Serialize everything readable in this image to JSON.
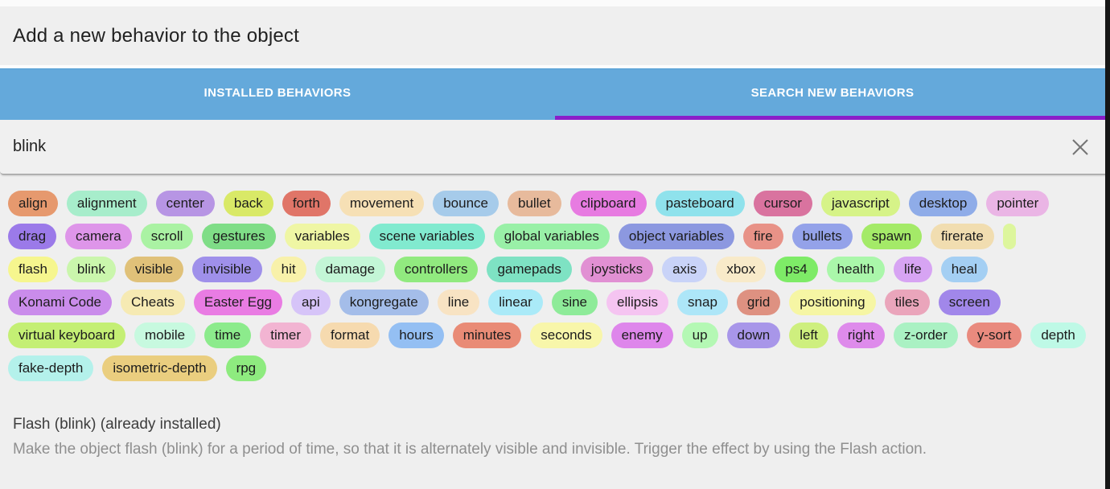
{
  "dialog": {
    "title": "Add a new behavior to the object"
  },
  "tabs": [
    {
      "label": "INSTALLED BEHAVIORS",
      "active": false
    },
    {
      "label": "SEARCH NEW BEHAVIORS",
      "active": true
    }
  ],
  "search": {
    "value": "blink",
    "clear_icon": "close-x"
  },
  "colors": {
    "tab_bar": "#64a9db",
    "active_tab_indicator": "#8a1fc9",
    "tab_text": "#ffffff",
    "search_bg": "#f0f0f0",
    "page_bg": "#efefef",
    "right_edge": "#161616",
    "close_icon": "#757575"
  },
  "tags": {
    "rows": [
      [
        {
          "label": "align",
          "color": "#e6996e"
        },
        {
          "label": "alignment",
          "color": "#a7edcb"
        },
        {
          "label": "center",
          "color": "#b795e4"
        },
        {
          "label": "back",
          "color": "#d9e967"
        },
        {
          "label": "forth",
          "color": "#e07568"
        },
        {
          "label": "movement",
          "color": "#f6e0b5"
        },
        {
          "label": "bounce",
          "color": "#a6cbea"
        },
        {
          "label": "bullet",
          "color": "#e7ba9c"
        },
        {
          "label": "clipboard",
          "color": "#e77be1"
        },
        {
          "label": "pasteboard",
          "color": "#8fe2ec"
        },
        {
          "label": "cursor",
          "color": "#d9739f"
        },
        {
          "label": "javascript",
          "color": "#d6f388"
        },
        {
          "label": "desktop",
          "color": "#8face8"
        },
        {
          "label": "pointer",
          "color": "#eab5e5"
        }
      ],
      [
        {
          "label": "drag",
          "color": "#9b7ae9"
        },
        {
          "label": "camera",
          "color": "#de95e9"
        },
        {
          "label": "scroll",
          "color": "#aaf2a3"
        },
        {
          "label": "gestures",
          "color": "#7fdd87"
        },
        {
          "label": "variables",
          "color": "#eff6a4"
        },
        {
          "label": "scene variables",
          "color": "#81eacf"
        },
        {
          "label": "global variables",
          "color": "#99f0a7"
        },
        {
          "label": "object variables",
          "color": "#8c98e0"
        },
        {
          "label": "fire",
          "color": "#e89287"
        },
        {
          "label": "bullets",
          "color": "#94a2e9"
        },
        {
          "label": "spawn",
          "color": "#a4ea68"
        },
        {
          "label": "firerate",
          "color": "#f1ddb0"
        },
        {
          "label": "",
          "color": "#ddf69d"
        }
      ],
      [
        {
          "label": "flash",
          "color": "#f6f68e"
        },
        {
          "label": "blink",
          "color": "#caf6ac"
        },
        {
          "label": "visible",
          "color": "#e0c179"
        },
        {
          "label": "invisible",
          "color": "#9f90ea"
        },
        {
          "label": "hit",
          "color": "#f8f1aa"
        },
        {
          "label": "damage",
          "color": "#c3f6d6"
        },
        {
          "label": "controllers",
          "color": "#91ea7f"
        },
        {
          "label": "gamepads",
          "color": "#7ee2c3"
        },
        {
          "label": "joysticks",
          "color": "#e190d3"
        },
        {
          "label": "axis",
          "color": "#c9d3f8"
        },
        {
          "label": "xbox",
          "color": "#f8eac9"
        },
        {
          "label": "ps4",
          "color": "#7eeb67"
        },
        {
          "label": "health",
          "color": "#aaf7aa"
        },
        {
          "label": "life",
          "color": "#d7a4f3"
        },
        {
          "label": "heal",
          "color": "#a4cff3"
        }
      ],
      [
        {
          "label": "Konami Code",
          "color": "#ca8ceb"
        },
        {
          "label": "Cheats",
          "color": "#f6eab3"
        },
        {
          "label": "Easter Egg",
          "color": "#e97ce3"
        },
        {
          "label": "api",
          "color": "#d6c4f8"
        },
        {
          "label": "kongregate",
          "color": "#a4bde9"
        },
        {
          "label": "line",
          "color": "#f8e3c3"
        },
        {
          "label": "linear",
          "color": "#aaeaf8"
        },
        {
          "label": "sine",
          "color": "#8eeb99"
        },
        {
          "label": "ellipsis",
          "color": "#f5c4f1"
        },
        {
          "label": "snap",
          "color": "#ade6f8"
        },
        {
          "label": "grid",
          "color": "#de9181"
        },
        {
          "label": "positioning",
          "color": "#f6f6a4"
        },
        {
          "label": "tiles",
          "color": "#eaa5bb"
        },
        {
          "label": "screen",
          "color": "#a187ea"
        }
      ],
      [
        {
          "label": "virtual keyboard",
          "color": "#c4ef74"
        },
        {
          "label": "mobile",
          "color": "#c7f9df"
        },
        {
          "label": "time",
          "color": "#8ceb8c"
        },
        {
          "label": "timer",
          "color": "#f2b4d2"
        },
        {
          "label": "format",
          "color": "#f6daaf"
        },
        {
          "label": "hours",
          "color": "#94bff3"
        },
        {
          "label": "minutes",
          "color": "#e98b76"
        },
        {
          "label": "seconds",
          "color": "#f8f6aa"
        },
        {
          "label": "enemy",
          "color": "#de86eb"
        },
        {
          "label": "up",
          "color": "#b4f8b4"
        },
        {
          "label": "down",
          "color": "#a896e9"
        },
        {
          "label": "left",
          "color": "#ceef7e"
        },
        {
          "label": "right",
          "color": "#de8beb"
        },
        {
          "label": "z-order",
          "color": "#aaf1c3"
        },
        {
          "label": "y-sort",
          "color": "#e98a7e"
        },
        {
          "label": "depth",
          "color": "#bef9e6"
        }
      ],
      [
        {
          "label": "fake-depth",
          "color": "#b4f1eb"
        },
        {
          "label": "isometric-depth",
          "color": "#eace7f"
        },
        {
          "label": "rpg",
          "color": "#8eeb7f"
        }
      ]
    ]
  },
  "result": {
    "title": "Flash (blink) (already installed)",
    "description": "Make the object flash (blink) for a period of time, so that it is alternately visible and invisible. Trigger the effect by using the Flash action."
  }
}
